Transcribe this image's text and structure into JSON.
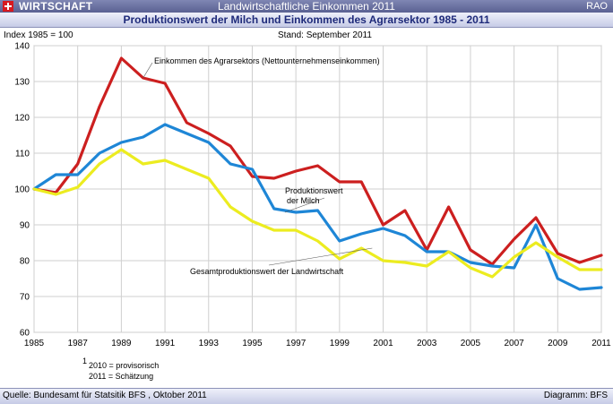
{
  "header": {
    "brand": "WIRTSCHAFT",
    "headline": "Landwirtschaftliche Einkommen 2011",
    "tag": "RAO",
    "flag_icon": "swiss-flag-icon"
  },
  "footer": {
    "source": "Quelle: Bundesamt für Statsitik BFS , Oktober 2011",
    "credit": "Diagramm: BFS"
  },
  "chart_data": {
    "type": "line",
    "title": "Produktionswert der Milch und Einkommen des Agrarsektor 1985 - 2011",
    "subtitle": "Stand: September 2011",
    "ylabel": "Index 1985 = 100",
    "xlabel": "",
    "ylim": [
      60,
      140
    ],
    "yticks": [
      "60",
      "70",
      "80",
      "90",
      "100",
      "110",
      "120",
      "130",
      "140"
    ],
    "xlim": [
      1985,
      2011
    ],
    "xticks": [
      "1985",
      "1987",
      "1989",
      "1991",
      "1993",
      "1995",
      "1997",
      "1999",
      "2001",
      "2003",
      "2005",
      "2007",
      "2009",
      "2011"
    ],
    "grid": true,
    "x": [
      1985,
      1986,
      1987,
      1988,
      1989,
      1990,
      1991,
      1992,
      1993,
      1994,
      1995,
      1996,
      1997,
      1998,
      1999,
      2000,
      2001,
      2002,
      2003,
      2004,
      2005,
      2006,
      2007,
      2008,
      2009,
      2010,
      2011
    ],
    "series": [
      {
        "name": "Einkommen des Agrarsektors (Nettounternehmenseinkommen)",
        "color": "#cc1f1f",
        "values": [
          100,
          99,
          107,
          123,
          136.5,
          131,
          129.5,
          118.5,
          115.5,
          112,
          103.5,
          103,
          105,
          106.5,
          102,
          102,
          90,
          94,
          83,
          95,
          83,
          79,
          86,
          92,
          82,
          79.5,
          81.5
        ]
      },
      {
        "name": "Produktionswert der Milch",
        "color": "#1e86d6",
        "values": [
          100,
          104,
          104,
          110,
          113,
          114.5,
          118,
          115.5,
          113,
          107,
          105.5,
          94.5,
          93.5,
          94,
          85.5,
          87.5,
          89,
          87,
          82.5,
          82.5,
          79.5,
          78.5,
          78,
          90,
          75,
          72,
          72.5
        ]
      },
      {
        "name": "Gesamtproduktionswert der Landwirtschaft",
        "color": "#ecec20",
        "values": [
          100,
          98.5,
          100.5,
          107,
          111,
          107,
          108,
          105.5,
          103,
          95,
          91,
          88.5,
          88.5,
          85.5,
          80.5,
          83.5,
          80,
          79.5,
          78.5,
          82.5,
          78,
          75.5,
          81,
          85,
          81,
          77.5,
          77.5
        ]
      }
    ],
    "annotations": {
      "einkommen": "Einkommen des Agrarsektors (Nettounternehmenseinkommen)",
      "milch_line1": "Produktionswert",
      "milch_line2": "der Milch",
      "gesamt": "Gesamtproduktionswert der Landwirtschaft",
      "footnote_sup": "1",
      "footnote1": "2010 = provisorisch",
      "footnote2": "2011 = Schätzung"
    }
  }
}
